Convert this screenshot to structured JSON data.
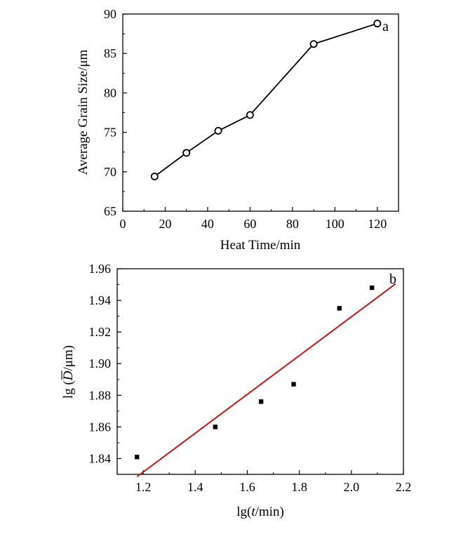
{
  "chart_data": [
    {
      "type": "line",
      "panel_label": "a",
      "xlabel": "Heat Time/min",
      "ylabel": "Average Grain Size/μm",
      "xlim": [
        0,
        130
      ],
      "ylim": [
        65,
        90
      ],
      "xticks": [
        0,
        20,
        40,
        60,
        80,
        100,
        120
      ],
      "yticks": [
        65,
        70,
        75,
        80,
        85,
        90
      ],
      "xtick_labels": [
        "0",
        "20",
        "40",
        "60",
        "80",
        "100",
        "120"
      ],
      "ytick_labels": [
        "65",
        "70",
        "75",
        "80",
        "85",
        "90"
      ],
      "marker": "open-circle",
      "line_color": "#000000",
      "grid": false,
      "series": [
        {
          "x": [
            15,
            30,
            45,
            60,
            90,
            120
          ],
          "y": [
            69.4,
            72.4,
            75.2,
            77.2,
            86.2,
            88.8
          ]
        }
      ]
    },
    {
      "type": "scatter",
      "panel_label": "b",
      "xlabel_prefix": "lg(",
      "xlabel_var": "t",
      "xlabel_suffix": "/min)",
      "ylabel_prefix": "lg (",
      "ylabel_var": "D",
      "ylabel_suffix": "/μm)",
      "xlim": [
        1.1,
        2.2
      ],
      "ylim": [
        1.83,
        1.96
      ],
      "xticks": [
        1.2,
        1.4,
        1.6,
        1.8,
        2.0,
        2.2
      ],
      "yticks": [
        1.84,
        1.86,
        1.88,
        1.9,
        1.92,
        1.94,
        1.96
      ],
      "xtick_labels": [
        "1.2",
        "1.4",
        "1.6",
        "1.8",
        "2.0",
        "2.2"
      ],
      "ytick_labels": [
        "1.84",
        "1.86",
        "1.88",
        "1.90",
        "1.92",
        "1.94",
        "1.96"
      ],
      "marker": "filled-square",
      "marker_color": "#000000",
      "fit_color": "#cc1111",
      "grid": false,
      "series": [
        {
          "x": [
            1.176,
            1.477,
            1.653,
            1.778,
            1.954,
            2.079
          ],
          "y": [
            1.841,
            1.86,
            1.876,
            1.887,
            1.935,
            1.948
          ]
        }
      ],
      "fit_line": {
        "x": [
          1.176,
          2.17
        ],
        "y": [
          1.8285,
          1.9505
        ]
      }
    }
  ]
}
